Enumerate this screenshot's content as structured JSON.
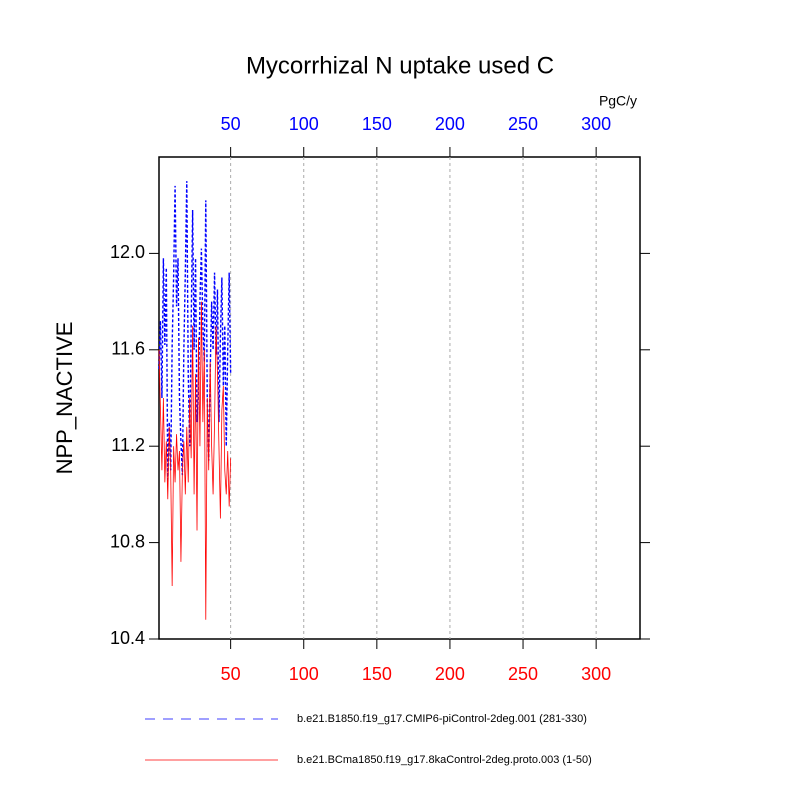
{
  "chart_data": {
    "type": "line",
    "title": "Mycorrhizal N uptake used C",
    "ylabel": "NPP_NACTIVE",
    "units": "PgC/y",
    "x": [
      1,
      2,
      3,
      4,
      5,
      6,
      7,
      8,
      9,
      10,
      11,
      12,
      13,
      14,
      15,
      16,
      17,
      18,
      19,
      20,
      21,
      22,
      23,
      24,
      25,
      26,
      27,
      28,
      29,
      30,
      31,
      32,
      33,
      34,
      35,
      36,
      37,
      38,
      39,
      40,
      41,
      42,
      43,
      44,
      45,
      46,
      47,
      48,
      49,
      50
    ],
    "series": [
      {
        "name": "b.e21.B1850.f19_g17.CMIP6-piControl-2deg.001 (281-330)",
        "color": "#0000ff",
        "dash": true,
        "values": [
          11.52,
          11.72,
          11.4,
          11.98,
          11.62,
          11.94,
          11.05,
          11.3,
          11.1,
          11.62,
          11.9,
          12.28,
          11.78,
          11.98,
          11.4,
          11.22,
          11.08,
          11.6,
          11.92,
          12.3,
          11.5,
          11.2,
          11.7,
          12.18,
          11.6,
          11.98,
          11.3,
          11.42,
          11.8,
          12.02,
          11.7,
          11.55,
          12.22,
          11.4,
          11.14,
          11.5,
          11.8,
          11.6,
          11.92,
          11.58,
          11.85,
          11.3,
          11.65,
          11.9,
          11.45,
          11.7,
          11.2,
          11.6,
          11.92,
          11.5
        ]
      },
      {
        "name": "b.e21.BCma1850.f19_g17.8kaControl-2deg.proto.003 (1-50)",
        "color": "#ff0000",
        "dash": false,
        "values": [
          11.6,
          11.35,
          11.1,
          11.4,
          11.05,
          11.22,
          10.98,
          11.28,
          11.1,
          10.62,
          11.2,
          11.05,
          11.25,
          11.1,
          11.18,
          10.72,
          11.1,
          11.22,
          11.0,
          11.28,
          11.05,
          11.4,
          11.15,
          11.7,
          11.0,
          11.5,
          10.85,
          11.65,
          11.2,
          11.8,
          11.3,
          11.6,
          10.48,
          11.4,
          11.1,
          11.55,
          11.2,
          11.0,
          11.3,
          11.7,
          11.5,
          11.2,
          10.9,
          11.35,
          11.45,
          11.1,
          11.0,
          11.18,
          10.95,
          11.15
        ]
      }
    ],
    "xlim": [
      1,
      330
    ],
    "xticks": [
      50,
      100,
      150,
      200,
      250,
      300
    ],
    "ylim": [
      10.4,
      12.4
    ],
    "yticks": [
      {
        "value": 10.4,
        "label": "10.4"
      },
      {
        "value": 10.8,
        "label": "10.8"
      },
      {
        "value": 11.2,
        "label": "11.2"
      },
      {
        "value": 11.6,
        "label": "11.6"
      },
      {
        "value": 12.0,
        "label": "12.0"
      }
    ],
    "top_axis_color": "#0000ff",
    "bottom_axis_color": "#ff0000",
    "grid": true
  }
}
